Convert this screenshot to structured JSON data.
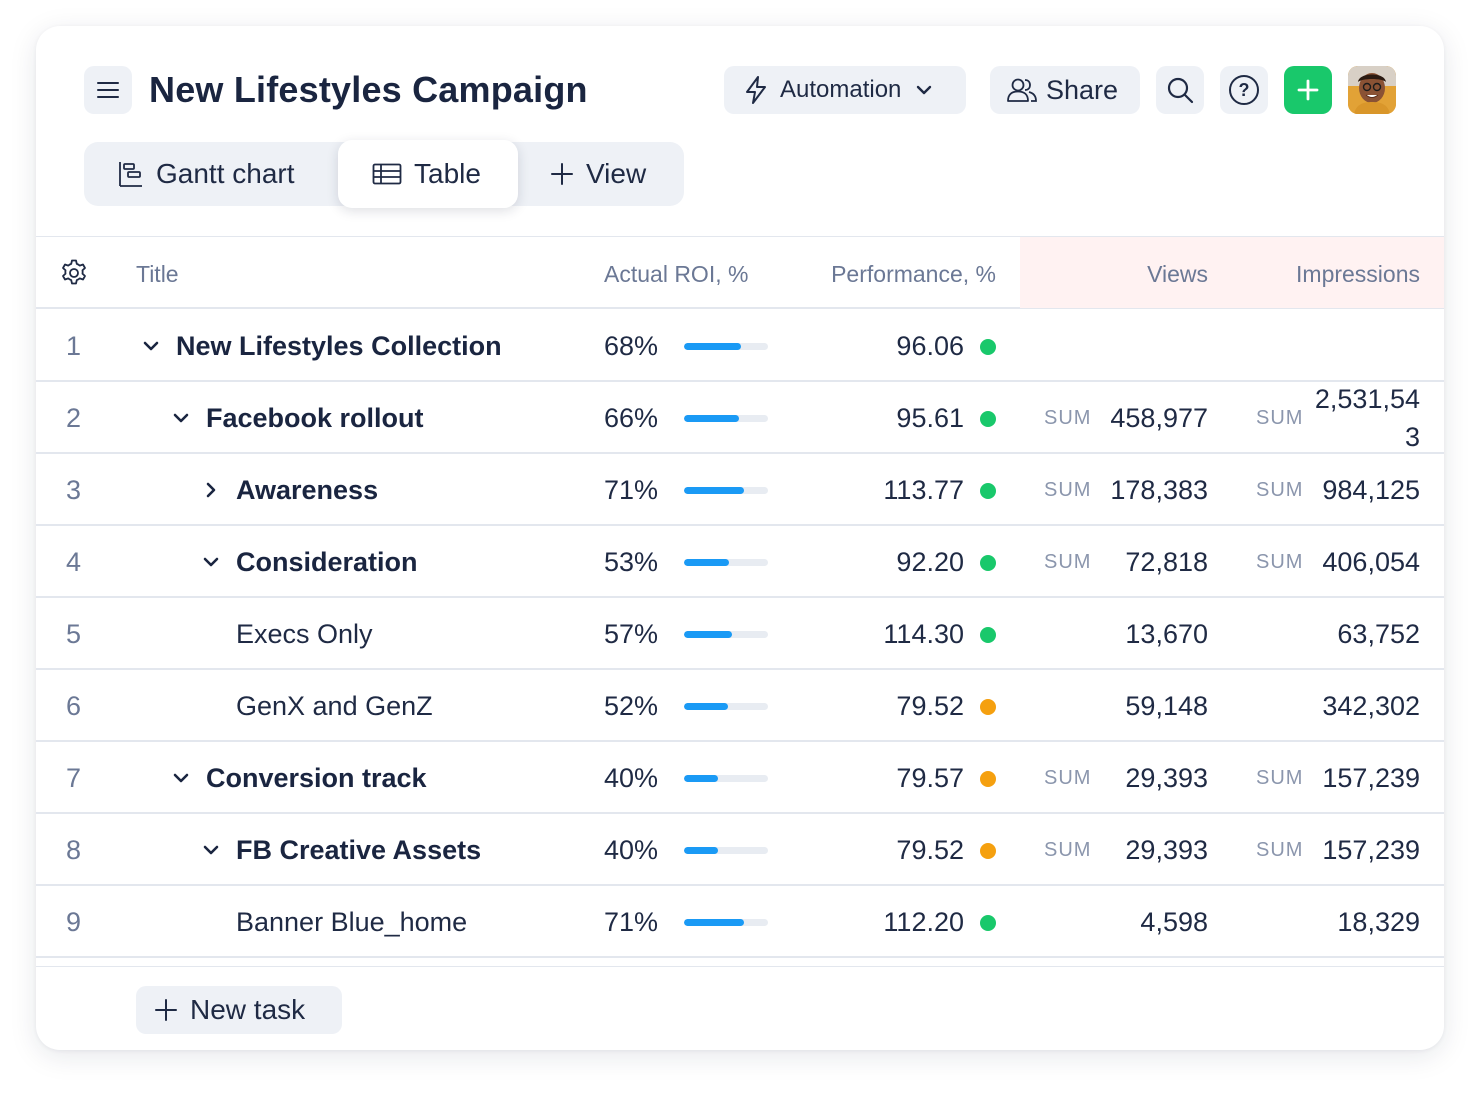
{
  "header": {
    "title": "New Lifestyles Campaign",
    "automation_label": "Automation",
    "share_label": "Share"
  },
  "tabs": [
    {
      "label": "Gantt chart"
    },
    {
      "label": "Table"
    },
    {
      "label": "View"
    }
  ],
  "table": {
    "headers": {
      "title": "Title",
      "roi": "Actual ROI, %",
      "performance": "Performance, %",
      "views": "Views",
      "impressions": "Impressions"
    },
    "sum_label": "SUM",
    "rows": [
      {
        "num": "1",
        "title": "New Lifestyles Collection",
        "roi": "68%",
        "roi_value": 0.68,
        "perf": "96.06",
        "status": "green",
        "views": "",
        "impressions": "",
        "has_sum": false
      },
      {
        "num": "2",
        "title": "Facebook rollout",
        "roi": "66%",
        "roi_value": 0.66,
        "perf": "95.61",
        "status": "green",
        "views": "458,977",
        "impressions": "2,531,543",
        "has_sum": true
      },
      {
        "num": "3",
        "title": "Awareness",
        "roi": "71%",
        "roi_value": 0.71,
        "perf": "113.77",
        "status": "green",
        "views": "178,383",
        "impressions": "984,125",
        "has_sum": true
      },
      {
        "num": "4",
        "title": "Consideration",
        "roi": "53%",
        "roi_value": 0.53,
        "perf": "92.20",
        "status": "green",
        "views": "72,818",
        "impressions": "406,054",
        "has_sum": true
      },
      {
        "num": "5",
        "title": "Execs Only",
        "roi": "57%",
        "roi_value": 0.57,
        "perf": "114.30",
        "status": "green",
        "views": "13,670",
        "impressions": "63,752",
        "has_sum": false
      },
      {
        "num": "6",
        "title": "GenX and GenZ",
        "roi": "52%",
        "roi_value": 0.52,
        "perf": "79.52",
        "status": "orange",
        "views": "59,148",
        "impressions": "342,302",
        "has_sum": false
      },
      {
        "num": "7",
        "title": "Conversion track",
        "roi": "40%",
        "roi_value": 0.4,
        "perf": "79.57",
        "status": "orange",
        "views": "29,393",
        "impressions": "157,239",
        "has_sum": true
      },
      {
        "num": "8",
        "title": "FB Creative Assets",
        "roi": "40%",
        "roi_value": 0.4,
        "perf": "79.52",
        "status": "orange",
        "views": "29,393",
        "impressions": "157,239",
        "has_sum": true
      },
      {
        "num": "9",
        "title": "Banner Blue_home",
        "roi": "71%",
        "roi_value": 0.71,
        "perf": "112.20",
        "status": "green",
        "views": "4,598",
        "impressions": "18,329",
        "has_sum": false
      }
    ]
  },
  "footer": {
    "new_task_label": "New task"
  },
  "colors": {
    "green": "#19c86b",
    "orange": "#f5a00f",
    "bar_fill": "#1a9af5",
    "accent_add": "#19c86b"
  },
  "icons": {
    "menu": "menu-icon",
    "automation": "lightning-icon",
    "share": "users-icon",
    "search": "search-icon",
    "help": "help-icon",
    "add": "plus-icon",
    "gantt": "gantt-icon",
    "table": "table-icon",
    "settings": "gear-icon"
  }
}
